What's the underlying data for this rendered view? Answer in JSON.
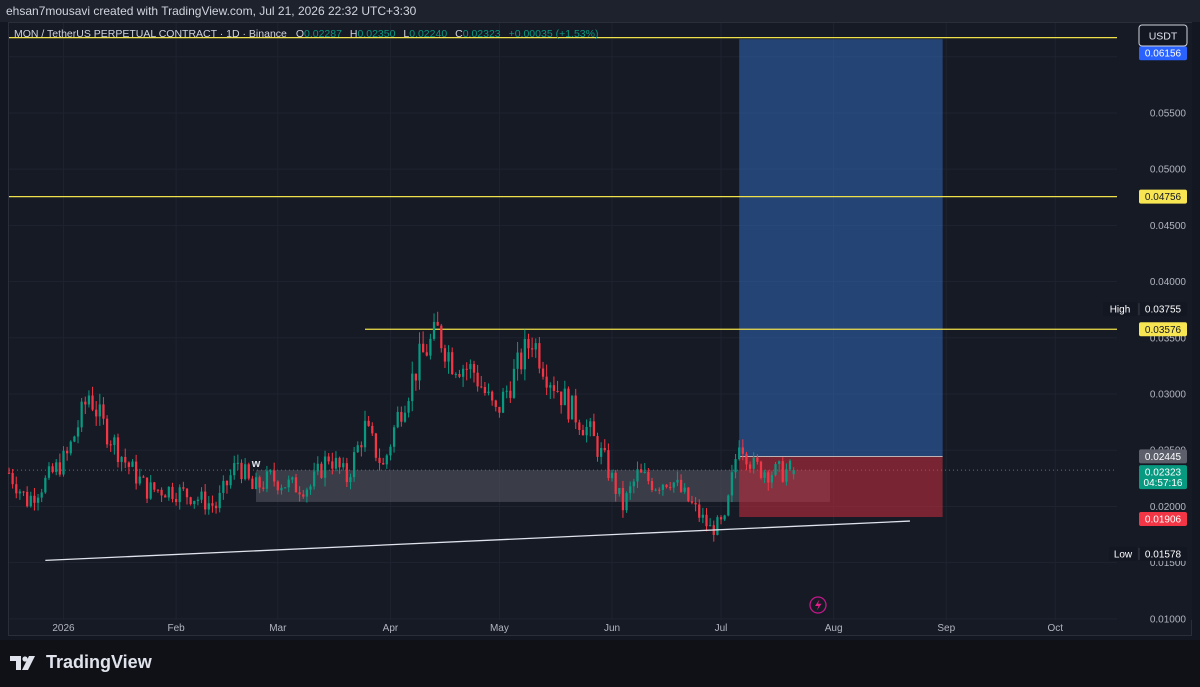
{
  "header": {
    "text": "ehsan7mousavi created with TradingView.com, Jul 21, 2026 22:32 UTC+3:30"
  },
  "symbol": {
    "name": "MON / TetherUS PERPETUAL CONTRACT · 1D · Binance",
    "o_label": "O",
    "o": "0.02287",
    "h_label": "H",
    "h": "0.02350",
    "l_label": "L",
    "l": "0.02240",
    "c_label": "C",
    "c": "0.02323",
    "change": "+0.00035 (+1.53%)"
  },
  "currency_button": "USDT",
  "footer": {
    "brand": "TradingView"
  },
  "markers": {
    "w_label": "w"
  },
  "colors": {
    "up": "#089981",
    "down": "#f23645",
    "yellow_line": "#f0e04a",
    "blue_zone": "#2e5fa8",
    "red_zone": "#b42c3c",
    "trendline": "#e0e3eb"
  },
  "chart_data": {
    "type": "candlestick",
    "symbol": "MON / TetherUS PERPETUAL CONTRACT",
    "interval": "1D",
    "exchange": "Binance",
    "y_axis": {
      "ticks": [
        "0.06000",
        "0.05500",
        "0.05000",
        "0.04500",
        "0.04000",
        "0.03500",
        "0.03000",
        "0.02500",
        "0.02000",
        "0.01500",
        "0.01000"
      ],
      "ylim": [
        0.0099,
        0.063
      ]
    },
    "x_axis": {
      "range": [
        "2025-12-17",
        "2026-10-18"
      ],
      "ticks": [
        {
          "label": "2026",
          "date": "2026-01-01"
        },
        {
          "label": "Feb",
          "date": "2026-02-01"
        },
        {
          "label": "Mar",
          "date": "2026-03-01"
        },
        {
          "label": "Apr",
          "date": "2026-04-01"
        },
        {
          "label": "May",
          "date": "2026-05-01"
        },
        {
          "label": "Jun",
          "date": "2026-06-01"
        },
        {
          "label": "Jul",
          "date": "2026-07-01"
        },
        {
          "label": "Aug",
          "date": "2026-08-01"
        },
        {
          "label": "Sep",
          "date": "2026-09-01"
        },
        {
          "label": "Oct",
          "date": "2026-10-01"
        }
      ]
    },
    "price_path": {
      "start": "2025-12-17",
      "closes": [
        {
          "date": "2025-12-17",
          "close": 0.023
        },
        {
          "date": "2025-12-22",
          "close": 0.0205
        },
        {
          "date": "2025-12-27",
          "close": 0.0222
        },
        {
          "date": "2026-01-02",
          "close": 0.0245
        },
        {
          "date": "2026-01-08",
          "close": 0.03
        },
        {
          "date": "2026-01-12",
          "close": 0.0272
        },
        {
          "date": "2026-01-18",
          "close": 0.024
        },
        {
          "date": "2026-01-24",
          "close": 0.0215
        },
        {
          "date": "2026-01-30",
          "close": 0.0215
        },
        {
          "date": "2026-02-05",
          "close": 0.021
        },
        {
          "date": "2026-02-12",
          "close": 0.02
        },
        {
          "date": "2026-02-18",
          "close": 0.024
        },
        {
          "date": "2026-02-22",
          "close": 0.0215
        },
        {
          "date": "2026-02-27",
          "close": 0.0225
        },
        {
          "date": "2026-03-05",
          "close": 0.0218
        },
        {
          "date": "2026-03-10",
          "close": 0.0218
        },
        {
          "date": "2026-03-15",
          "close": 0.0245
        },
        {
          "date": "2026-03-20",
          "close": 0.0225
        },
        {
          "date": "2026-03-25",
          "close": 0.027
        },
        {
          "date": "2026-03-30",
          "close": 0.0235
        },
        {
          "date": "2026-04-03",
          "close": 0.028
        },
        {
          "date": "2026-04-09",
          "close": 0.033
        },
        {
          "date": "2026-04-14",
          "close": 0.0355
        },
        {
          "date": "2026-04-18",
          "close": 0.033
        },
        {
          "date": "2026-04-24",
          "close": 0.032
        },
        {
          "date": "2026-04-30",
          "close": 0.0282
        },
        {
          "date": "2026-05-04",
          "close": 0.031
        },
        {
          "date": "2026-05-10",
          "close": 0.035
        },
        {
          "date": "2026-05-14",
          "close": 0.032
        },
        {
          "date": "2026-05-20",
          "close": 0.029
        },
        {
          "date": "2026-05-26",
          "close": 0.0265
        },
        {
          "date": "2026-05-30",
          "close": 0.024
        },
        {
          "date": "2026-06-04",
          "close": 0.02
        },
        {
          "date": "2026-06-08",
          "close": 0.0228
        },
        {
          "date": "2026-06-13",
          "close": 0.022
        },
        {
          "date": "2026-06-17",
          "close": 0.0225
        },
        {
          "date": "2026-06-22",
          "close": 0.0205
        },
        {
          "date": "2026-06-28",
          "close": 0.018
        },
        {
          "date": "2026-07-02",
          "close": 0.0185
        },
        {
          "date": "2026-07-06",
          "close": 0.0262
        },
        {
          "date": "2026-07-10",
          "close": 0.0235
        },
        {
          "date": "2026-07-16",
          "close": 0.023
        },
        {
          "date": "2026-07-21",
          "close": 0.02323
        }
      ]
    },
    "last_candle": {
      "date": "2026-07-21",
      "open": 0.02287,
      "high": 0.0235,
      "low": 0.0224,
      "close": 0.02323
    },
    "horizontal_lines": [
      {
        "price": 0.0617,
        "from": "2025-12-17",
        "to": "2026-10-18"
      },
      {
        "price": 0.04756,
        "from": "2025-12-17",
        "to": "2026-10-18"
      },
      {
        "price": 0.03576,
        "from": "2026-03-25",
        "to": "2026-10-18"
      }
    ],
    "trendline": {
      "from": {
        "date": "2025-12-27",
        "price": 0.0152
      },
      "to": {
        "date": "2026-08-22",
        "price": 0.0187
      }
    },
    "zone_box": {
      "from": "2026-02-23",
      "to": "2026-07-31",
      "top": 0.02323,
      "bottom": 0.0204
    },
    "position": {
      "type": "long",
      "from": "2026-07-06",
      "to": "2026-08-31",
      "entry": 0.02445,
      "target": 0.06156,
      "stop": 0.01906
    },
    "price_labels": [
      {
        "value": "0.06170",
        "style": "yellow"
      },
      {
        "value": "0.06156",
        "style": "blue"
      },
      {
        "value": "0.04756",
        "style": "yellow"
      },
      {
        "value": "0.03755",
        "style": "dark",
        "tag": "High",
        "price": 0.03755
      },
      {
        "value": "0.03576",
        "style": "yellow"
      },
      {
        "value": "0.02445",
        "style": "grey"
      },
      {
        "value": "0.02323",
        "style": "green",
        "countdown": "04:57:16"
      },
      {
        "value": "0.01906",
        "style": "red"
      },
      {
        "value": "0.01578",
        "style": "dark",
        "tag": "Low",
        "price": 0.01578
      }
    ]
  }
}
